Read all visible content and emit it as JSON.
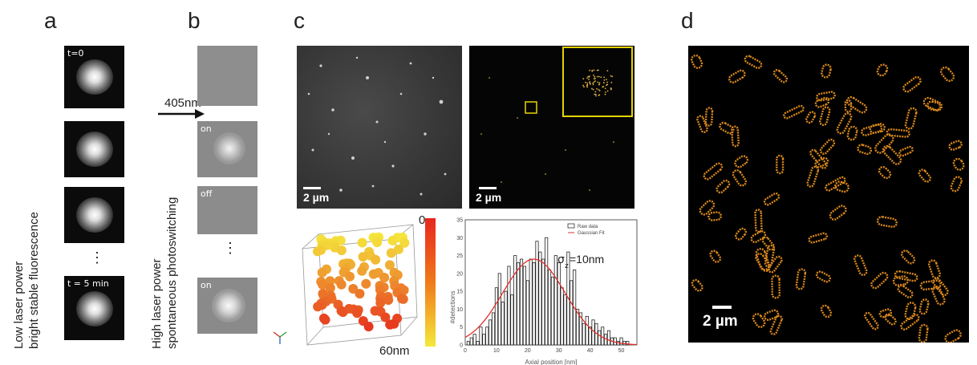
{
  "panels": {
    "a": {
      "label": "a",
      "tiles": [
        "t=0",
        "",
        "",
        "t = 5 min"
      ],
      "ellipsis": "⋮",
      "caption_line1": "Low laser power",
      "caption_line2": "bright stable fluorescence"
    },
    "b": {
      "label": "b",
      "arrow_label": "405nm",
      "tiles": [
        "",
        "on",
        "off",
        "on"
      ],
      "ellipsis": "⋮",
      "caption_line1": "High laser power",
      "caption_line2": "spontaneous photoswitching"
    },
    "c": {
      "label": "c",
      "scalebar_left": "2 µm",
      "scalebar_right": "2 µm",
      "colorbar_top": "0",
      "colorbar_bottom": "60nm",
      "histogram": {
        "legend_raw": "Raw data",
        "legend_fit": "Gaussian Fit",
        "ylabel": "#detections",
        "xlabel": "Axial position [nm]",
        "annotation_sigma": "σ",
        "annotation_sub": "z",
        "annotation_value": "=10nm",
        "yticks": [
          "35",
          "30",
          "25",
          "20",
          "15",
          "10",
          "5",
          "0"
        ],
        "xticks": [
          "0",
          "10",
          "20",
          "30",
          "40",
          "50"
        ]
      }
    },
    "d": {
      "label": "d",
      "scalebar": "2 µm"
    }
  },
  "chart_data": {
    "type": "bar",
    "xlabel": "Axial position [nm]",
    "ylabel": "#detections",
    "xlim": [
      0,
      55
    ],
    "ylim": [
      0,
      35
    ],
    "series": [
      {
        "name": "Raw data",
        "x": [
          1,
          2,
          3,
          4,
          5,
          6,
          7,
          8,
          9,
          10,
          11,
          12,
          13,
          14,
          15,
          16,
          17,
          18,
          19,
          20,
          21,
          22,
          23,
          24,
          25,
          26,
          27,
          28,
          29,
          30,
          31,
          32,
          33,
          34,
          35,
          36,
          37,
          38,
          39,
          40,
          41,
          42,
          43,
          44,
          45,
          46,
          47,
          48,
          49,
          50,
          51,
          52
        ],
        "values": [
          1,
          2,
          3,
          1,
          5,
          3,
          5,
          7,
          9,
          16,
          20,
          12,
          15,
          22,
          14,
          25,
          23,
          24,
          22,
          18,
          24,
          23,
          29,
          26,
          24,
          30,
          21,
          19,
          25,
          23,
          16,
          14,
          26,
          18,
          21,
          10,
          9,
          6,
          8,
          5,
          7,
          6,
          4,
          5,
          3,
          4,
          2,
          2,
          1,
          2,
          1,
          1
        ]
      },
      {
        "name": "Gaussian Fit",
        "mean": 22,
        "sigma": 10,
        "peak": 24
      }
    ]
  },
  "colors": {
    "tile_bg": "#0b0b0b",
    "gray_tile": "#8a8a8a",
    "fit_line": "#e0302a",
    "inset_box": "#e6d400",
    "cell_color": "#d9881c"
  }
}
